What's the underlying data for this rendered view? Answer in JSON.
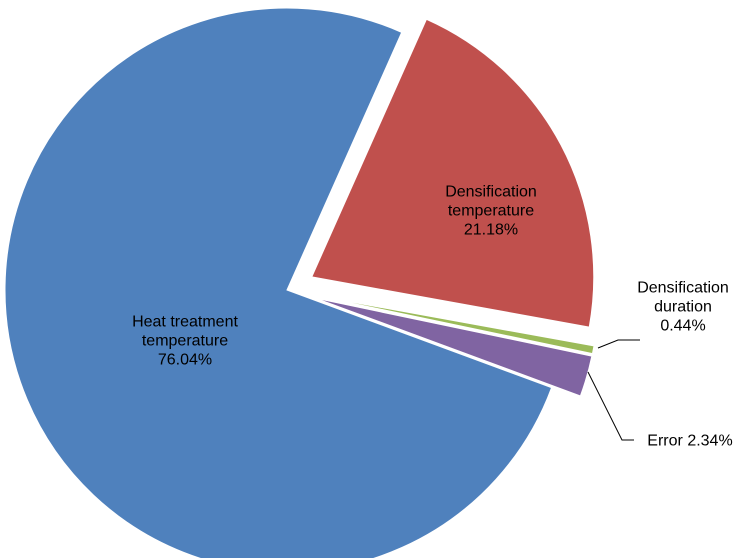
{
  "chart_data": {
    "type": "pie",
    "categories": [
      "Densification temperature",
      "Densification duration",
      "Error",
      "Heat treatment temperature"
    ],
    "values": [
      21.18,
      0.44,
      2.34,
      76.04
    ],
    "value_labels": [
      "21.18%",
      "0.44%",
      "2.34%",
      "76.04%"
    ],
    "colors": [
      "#c0504d",
      "#9bbb59",
      "#8064a2",
      "#4f81bd"
    ]
  }
}
